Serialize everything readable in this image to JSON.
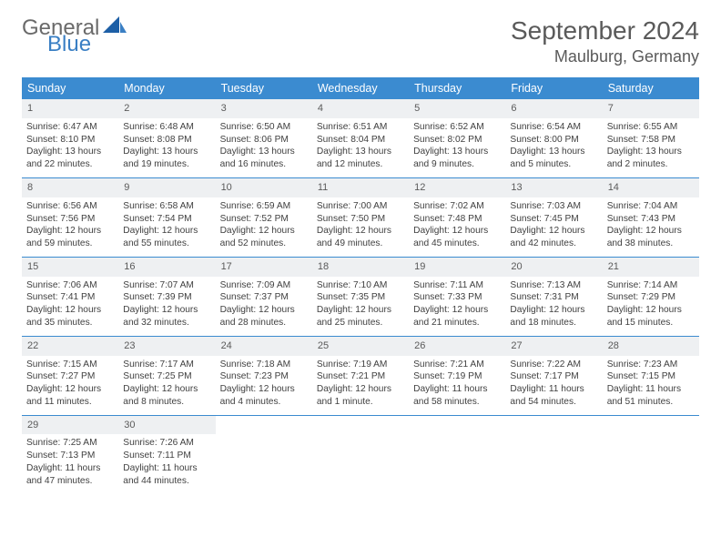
{
  "brand": {
    "part1": "General",
    "part2": "Blue"
  },
  "title": "September 2024",
  "location": "Maulburg, Germany",
  "day_names": [
    "Sunday",
    "Monday",
    "Tuesday",
    "Wednesday",
    "Thursday",
    "Friday",
    "Saturday"
  ],
  "colors": {
    "header_bg": "#3b8bd0",
    "header_text": "#ffffff",
    "daynum_bg": "#eef0f2",
    "border": "#3b8bd0",
    "logo_gray": "#6a6a6a",
    "logo_blue": "#3a7fc4",
    "text": "#404040"
  },
  "weeks": [
    [
      {
        "n": "1",
        "sr": "Sunrise: 6:47 AM",
        "ss": "Sunset: 8:10 PM",
        "dl": "Daylight: 13 hours and 22 minutes."
      },
      {
        "n": "2",
        "sr": "Sunrise: 6:48 AM",
        "ss": "Sunset: 8:08 PM",
        "dl": "Daylight: 13 hours and 19 minutes."
      },
      {
        "n": "3",
        "sr": "Sunrise: 6:50 AM",
        "ss": "Sunset: 8:06 PM",
        "dl": "Daylight: 13 hours and 16 minutes."
      },
      {
        "n": "4",
        "sr": "Sunrise: 6:51 AM",
        "ss": "Sunset: 8:04 PM",
        "dl": "Daylight: 13 hours and 12 minutes."
      },
      {
        "n": "5",
        "sr": "Sunrise: 6:52 AM",
        "ss": "Sunset: 8:02 PM",
        "dl": "Daylight: 13 hours and 9 minutes."
      },
      {
        "n": "6",
        "sr": "Sunrise: 6:54 AM",
        "ss": "Sunset: 8:00 PM",
        "dl": "Daylight: 13 hours and 5 minutes."
      },
      {
        "n": "7",
        "sr": "Sunrise: 6:55 AM",
        "ss": "Sunset: 7:58 PM",
        "dl": "Daylight: 13 hours and 2 minutes."
      }
    ],
    [
      {
        "n": "8",
        "sr": "Sunrise: 6:56 AM",
        "ss": "Sunset: 7:56 PM",
        "dl": "Daylight: 12 hours and 59 minutes."
      },
      {
        "n": "9",
        "sr": "Sunrise: 6:58 AM",
        "ss": "Sunset: 7:54 PM",
        "dl": "Daylight: 12 hours and 55 minutes."
      },
      {
        "n": "10",
        "sr": "Sunrise: 6:59 AM",
        "ss": "Sunset: 7:52 PM",
        "dl": "Daylight: 12 hours and 52 minutes."
      },
      {
        "n": "11",
        "sr": "Sunrise: 7:00 AM",
        "ss": "Sunset: 7:50 PM",
        "dl": "Daylight: 12 hours and 49 minutes."
      },
      {
        "n": "12",
        "sr": "Sunrise: 7:02 AM",
        "ss": "Sunset: 7:48 PM",
        "dl": "Daylight: 12 hours and 45 minutes."
      },
      {
        "n": "13",
        "sr": "Sunrise: 7:03 AM",
        "ss": "Sunset: 7:45 PM",
        "dl": "Daylight: 12 hours and 42 minutes."
      },
      {
        "n": "14",
        "sr": "Sunrise: 7:04 AM",
        "ss": "Sunset: 7:43 PM",
        "dl": "Daylight: 12 hours and 38 minutes."
      }
    ],
    [
      {
        "n": "15",
        "sr": "Sunrise: 7:06 AM",
        "ss": "Sunset: 7:41 PM",
        "dl": "Daylight: 12 hours and 35 minutes."
      },
      {
        "n": "16",
        "sr": "Sunrise: 7:07 AM",
        "ss": "Sunset: 7:39 PM",
        "dl": "Daylight: 12 hours and 32 minutes."
      },
      {
        "n": "17",
        "sr": "Sunrise: 7:09 AM",
        "ss": "Sunset: 7:37 PM",
        "dl": "Daylight: 12 hours and 28 minutes."
      },
      {
        "n": "18",
        "sr": "Sunrise: 7:10 AM",
        "ss": "Sunset: 7:35 PM",
        "dl": "Daylight: 12 hours and 25 minutes."
      },
      {
        "n": "19",
        "sr": "Sunrise: 7:11 AM",
        "ss": "Sunset: 7:33 PM",
        "dl": "Daylight: 12 hours and 21 minutes."
      },
      {
        "n": "20",
        "sr": "Sunrise: 7:13 AM",
        "ss": "Sunset: 7:31 PM",
        "dl": "Daylight: 12 hours and 18 minutes."
      },
      {
        "n": "21",
        "sr": "Sunrise: 7:14 AM",
        "ss": "Sunset: 7:29 PM",
        "dl": "Daylight: 12 hours and 15 minutes."
      }
    ],
    [
      {
        "n": "22",
        "sr": "Sunrise: 7:15 AM",
        "ss": "Sunset: 7:27 PM",
        "dl": "Daylight: 12 hours and 11 minutes."
      },
      {
        "n": "23",
        "sr": "Sunrise: 7:17 AM",
        "ss": "Sunset: 7:25 PM",
        "dl": "Daylight: 12 hours and 8 minutes."
      },
      {
        "n": "24",
        "sr": "Sunrise: 7:18 AM",
        "ss": "Sunset: 7:23 PM",
        "dl": "Daylight: 12 hours and 4 minutes."
      },
      {
        "n": "25",
        "sr": "Sunrise: 7:19 AM",
        "ss": "Sunset: 7:21 PM",
        "dl": "Daylight: 12 hours and 1 minute."
      },
      {
        "n": "26",
        "sr": "Sunrise: 7:21 AM",
        "ss": "Sunset: 7:19 PM",
        "dl": "Daylight: 11 hours and 58 minutes."
      },
      {
        "n": "27",
        "sr": "Sunrise: 7:22 AM",
        "ss": "Sunset: 7:17 PM",
        "dl": "Daylight: 11 hours and 54 minutes."
      },
      {
        "n": "28",
        "sr": "Sunrise: 7:23 AM",
        "ss": "Sunset: 7:15 PM",
        "dl": "Daylight: 11 hours and 51 minutes."
      }
    ],
    [
      {
        "n": "29",
        "sr": "Sunrise: 7:25 AM",
        "ss": "Sunset: 7:13 PM",
        "dl": "Daylight: 11 hours and 47 minutes."
      },
      {
        "n": "30",
        "sr": "Sunrise: 7:26 AM",
        "ss": "Sunset: 7:11 PM",
        "dl": "Daylight: 11 hours and 44 minutes."
      },
      null,
      null,
      null,
      null,
      null
    ]
  ]
}
